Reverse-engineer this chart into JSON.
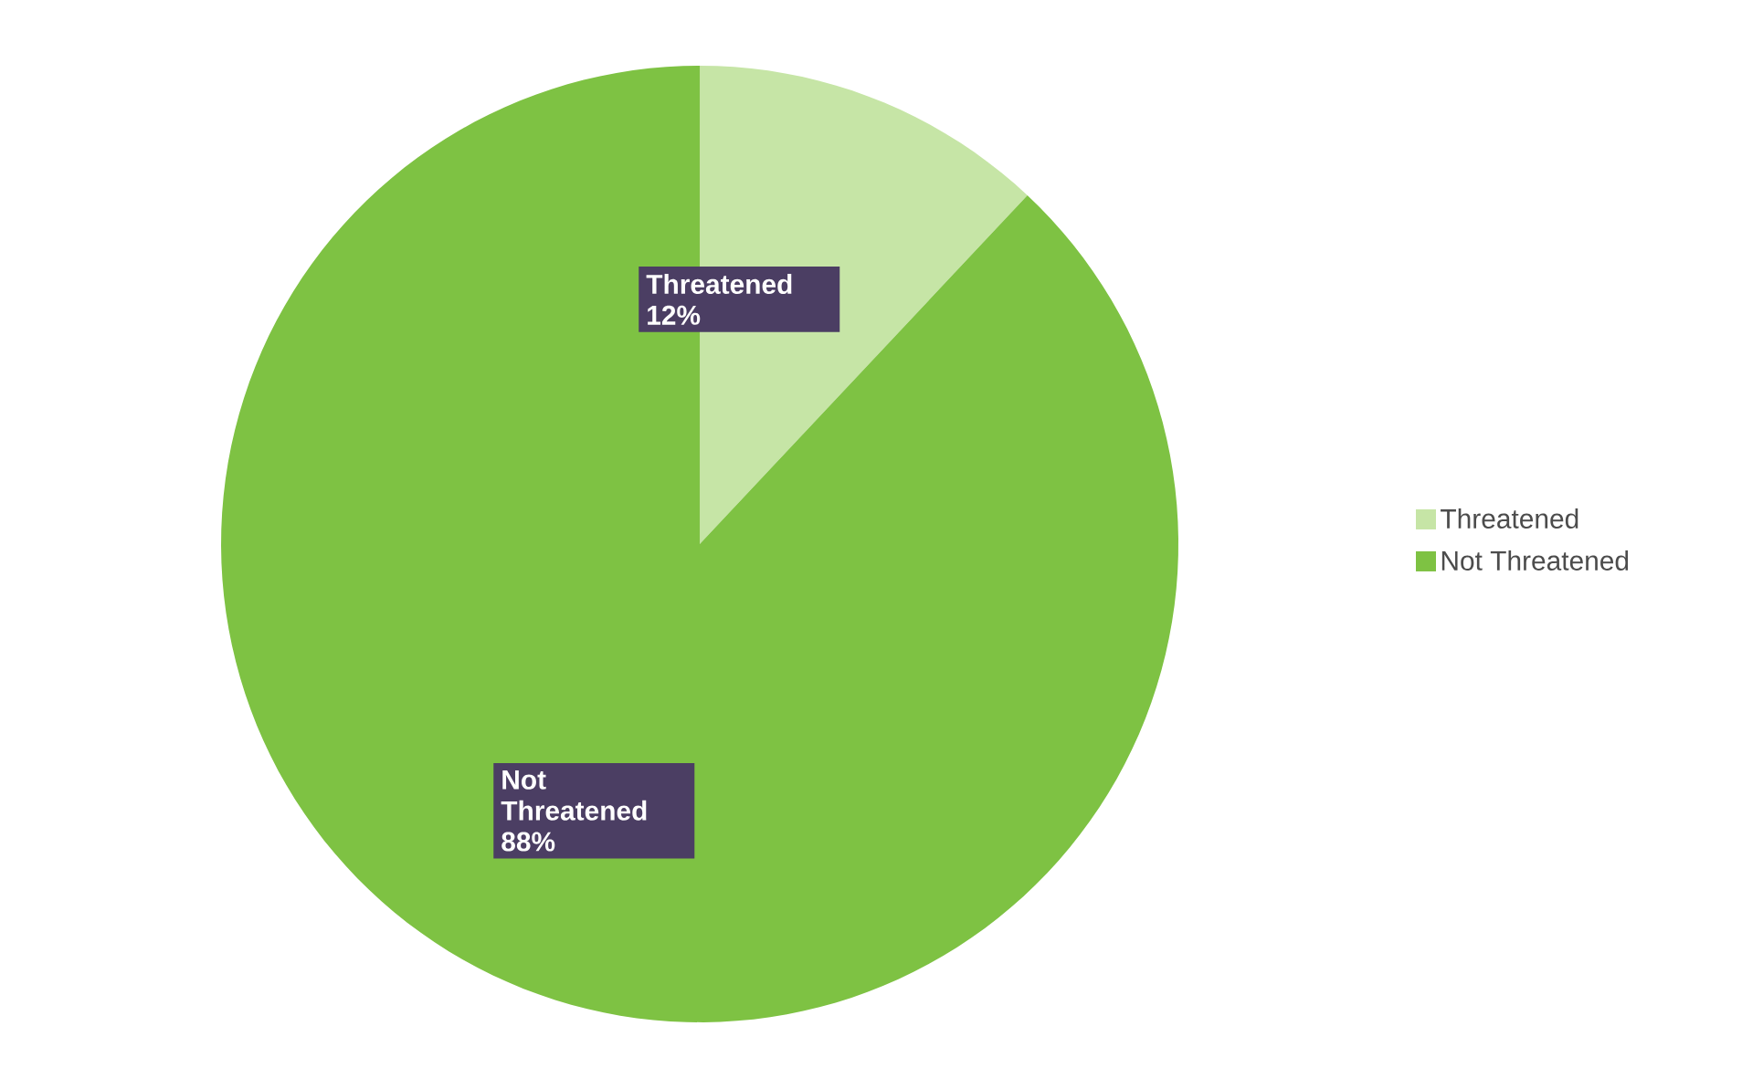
{
  "chart_data": {
    "type": "pie",
    "categories": [
      "Threatened",
      "Not Threatened"
    ],
    "values": [
      12,
      88
    ],
    "colors": [
      "#c6e5a6",
      "#7ec243"
    ],
    "value_labels": [
      "12%",
      "88%"
    ],
    "legend": "right"
  }
}
